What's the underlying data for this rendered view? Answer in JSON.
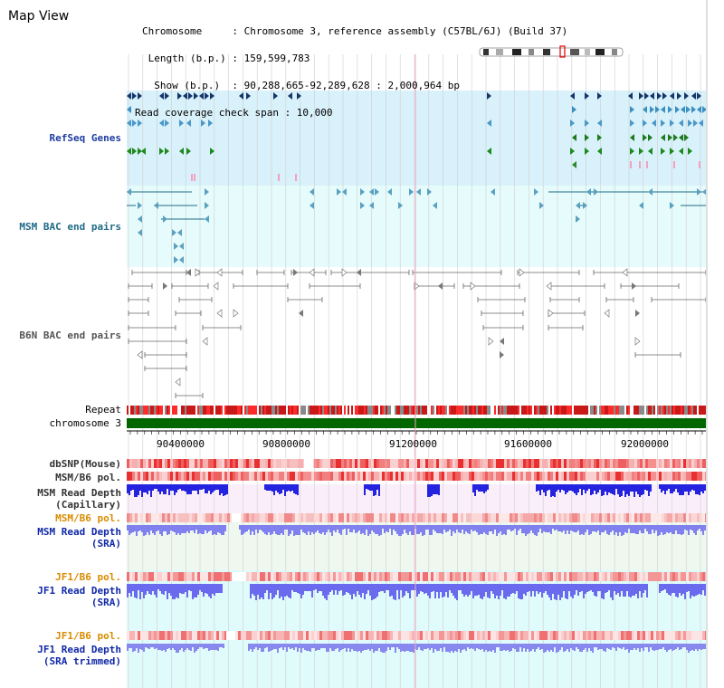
{
  "view_title": "Map View",
  "info_lines": [
    "Chromosome     : Chromosome 3, reference assembly (C57BL/6J) (Build 37)",
    " Length (b.p.) : 159,599,783",
    "  Show (b.p.)  : 90,288,665-92,289,628 : 2,000,964 bp",
    "Read coverage check span : 10,000"
  ],
  "tracks": {
    "refseq": "RefSeq Genes",
    "msm_bac": "MSM BAC end pairs",
    "b6n_bac": "B6N BAC end pairs",
    "repeat": "Repeat",
    "chromosome": "chromosome 3",
    "dbsnp": "dbSNP(Mouse)",
    "msm_pol": "MSM/B6 pol.",
    "msm_depth_cap": [
      "MSM Read Depth",
      "(Capillary)"
    ],
    "msm_pol_sra": "MSM/B6 pol.",
    "msm_depth_sra": [
      "MSM Read Depth",
      "(SRA)"
    ],
    "jf1_pol": "JF1/B6 pol.",
    "jf1_depth": [
      "JF1 Read Depth",
      "(SRA)"
    ],
    "jf1_pol_trim": "JF1/B6 pol.",
    "jf1_depth_trim": [
      "JF1 Read Depth",
      "(SRA trimmed)"
    ]
  },
  "axis_ticks": [
    "90400000",
    "90800000",
    "91200000",
    "91600000",
    "92000000"
  ],
  "colors": {
    "refseq_bg": "#d8f1fa",
    "bac_bg": "#e6fbfb",
    "capillary_bg": "#fbeefb",
    "sra_bg": "#eef8ee",
    "jf1_bg": "#e0fbfb",
    "chromosome": "#006600",
    "repeat_red": "#e01010",
    "depth_blue": "#2020e0",
    "depth_lilac": "#7070ee"
  }
}
